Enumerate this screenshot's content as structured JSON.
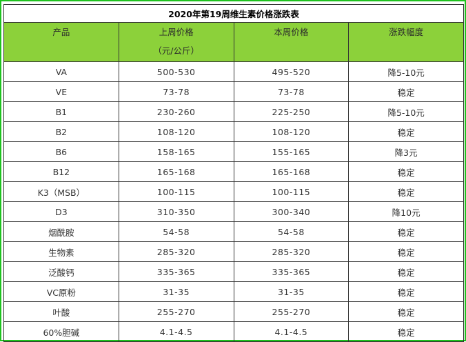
{
  "table": {
    "title": "2020年第19周维生素价格涨跌表",
    "headers": {
      "product": "产品",
      "last_week": "上周价格",
      "last_week_unit": "（元/公斤）",
      "this_week": "本周价格",
      "change": "涨跌幅度"
    },
    "rows": [
      {
        "product": "VA",
        "last_week": "500-530",
        "this_week": "495-520",
        "change": "降5-10元"
      },
      {
        "product": "VE",
        "last_week": "73-78",
        "this_week": "73-78",
        "change": "稳定"
      },
      {
        "product": "B1",
        "last_week": "230-260",
        "this_week": "225-250",
        "change": "降5-10元"
      },
      {
        "product": "B2",
        "last_week": "108-120",
        "this_week": "108-120",
        "change": "稳定"
      },
      {
        "product": "B6",
        "last_week": "158-165",
        "this_week": "155-165",
        "change": "降3元"
      },
      {
        "product": "B12",
        "last_week": "165-168",
        "this_week": "165-168",
        "change": "稳定"
      },
      {
        "product": "K3（MSB）",
        "last_week": "100-115",
        "this_week": "100-115",
        "change": "稳定"
      },
      {
        "product": "D3",
        "last_week": "310-350",
        "this_week": "300-340",
        "change": "降10元"
      },
      {
        "product": "烟酰胺",
        "last_week": "54-58",
        "this_week": "54-58",
        "change": "稳定"
      },
      {
        "product": "生物素",
        "last_week": "285-320",
        "this_week": "285-320",
        "change": "稳定"
      },
      {
        "product": "泛酸钙",
        "last_week": "335-365",
        "this_week": "335-365",
        "change": "稳定"
      },
      {
        "product": "VC原粉",
        "last_week": "31-35",
        "this_week": "31-35",
        "change": "稳定"
      },
      {
        "product": "叶酸",
        "last_week": "255-270",
        "this_week": "255-270",
        "change": "稳定"
      },
      {
        "product": "60%胆碱",
        "last_week": "4.1-4.5",
        "this_week": "4.1-4.5",
        "change": "稳定"
      }
    ]
  },
  "colors": {
    "frame_border": "#1ec21e",
    "header_background": "#8cd13a",
    "changed_text": "#6b6b2a"
  }
}
